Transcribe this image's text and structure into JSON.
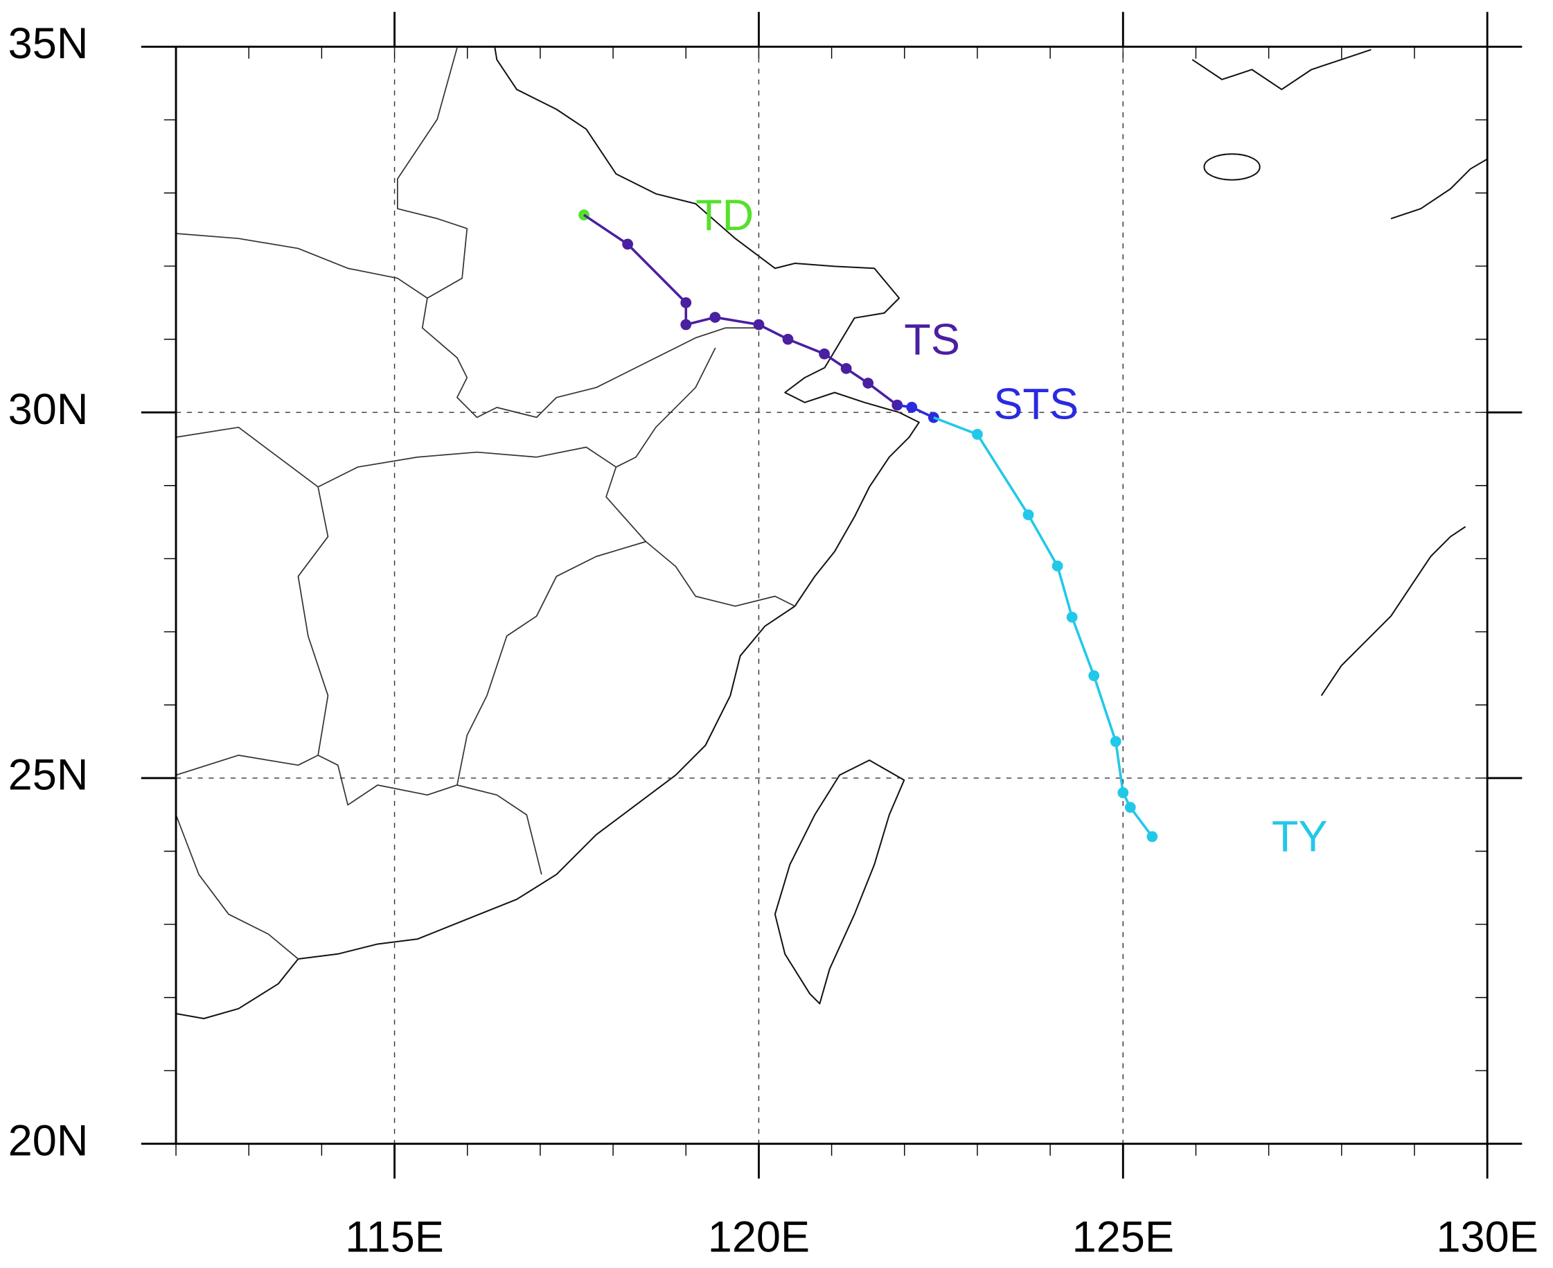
{
  "chart_data": {
    "type": "track",
    "xlim": [
      112,
      130
    ],
    "ylim": [
      20,
      35
    ],
    "xticks": [
      {
        "value": 115,
        "label": "115E"
      },
      {
        "value": 120,
        "label": "120E"
      },
      {
        "value": 125,
        "label": "125E"
      },
      {
        "value": 130,
        "label": "130E"
      }
    ],
    "yticks": [
      {
        "value": 20,
        "label": "20N"
      },
      {
        "value": 25,
        "label": "25N"
      },
      {
        "value": 30,
        "label": "30N"
      },
      {
        "value": 35,
        "label": "35N"
      }
    ],
    "grid": true,
    "series": [
      {
        "name": "TD",
        "color": "#55e02a",
        "x": [
          117.6
        ],
        "values": [
          32.7
        ]
      },
      {
        "name": "TS",
        "color": "#4a1fa0",
        "x": [
          118.2,
          119.0,
          119.0,
          119.4,
          120.0,
          120.4,
          120.9,
          121.2,
          121.5,
          121.9
        ],
        "values": [
          32.3,
          31.5,
          31.2,
          31.3,
          31.2,
          31.0,
          30.8,
          30.6,
          30.4,
          30.1
        ]
      },
      {
        "name": "STS",
        "color": "#2a2ae0",
        "x": [
          122.1,
          122.4
        ],
        "values": [
          30.07,
          29.93
        ]
      },
      {
        "name": "TY",
        "color": "#22c8e8",
        "x": [
          123.0,
          123.7,
          124.1,
          124.3,
          124.6,
          124.9,
          125.0,
          125.1,
          125.4
        ],
        "values": [
          29.7,
          28.6,
          27.9,
          27.2,
          26.4,
          25.5,
          24.8,
          24.6,
          24.2
        ]
      }
    ]
  }
}
